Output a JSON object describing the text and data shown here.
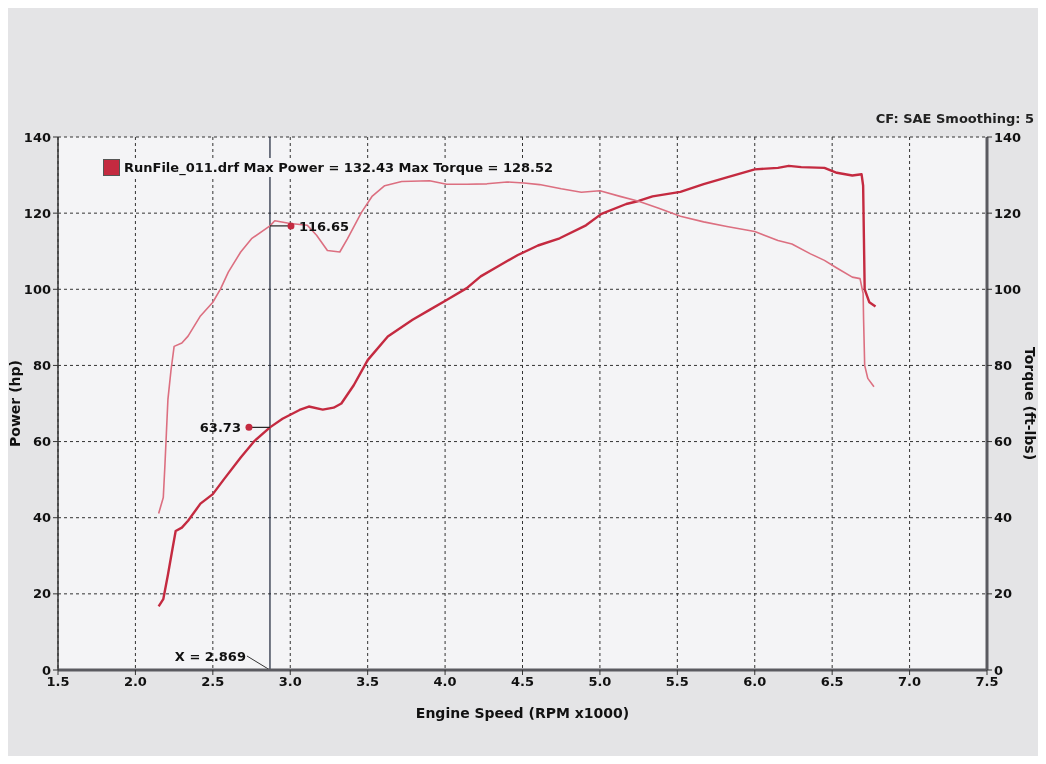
{
  "chart_data": {
    "type": "line",
    "xlabel": "Engine Speed (RPM x1000)",
    "ylabel": "Power (hp)",
    "y2label": "Torque (ft-lbs)",
    "xlim": [
      1.5,
      7.5
    ],
    "xticks": [
      1.5,
      {
        "value": 2,
        "label": "2.0"
      },
      2.5,
      {
        "value": 3,
        "label": "3.0"
      },
      3.5,
      {
        "value": 4,
        "label": "4.0"
      },
      4.5,
      {
        "value": 5,
        "label": "5.0"
      },
      5.5,
      {
        "value": 6,
        "label": "6.0"
      },
      6.5,
      {
        "value": 7,
        "label": "7.0"
      },
      7.5
    ],
    "ylim": [
      0,
      140
    ],
    "yticks": [
      0,
      20,
      40,
      60,
      80,
      100,
      120,
      140
    ],
    "y2lim": [
      0,
      140
    ],
    "y2ticks": [
      0,
      20,
      40,
      60,
      80,
      100,
      120,
      140
    ],
    "grid": true,
    "legend": "top left",
    "series": [
      {
        "name": "RunFile_011.drf Max Power = 132.43 Max Torque = 128.52",
        "color": "#c42a40",
        "x": [
          2.15,
          2.18,
          2.21,
          2.24,
          2.26,
          2.3,
          2.34,
          2.42,
          2.5,
          2.57,
          2.68,
          2.77,
          2.869,
          2.95,
          3.06,
          3.12,
          3.21,
          3.28,
          3.33,
          3.41,
          3.5,
          3.63,
          3.79,
          3.9,
          4.01,
          4.14,
          4.23,
          4.34,
          4.47,
          4.6,
          4.74,
          4.91,
          5.01,
          5.17,
          5.25,
          5.34,
          5.52,
          5.67,
          5.82,
          6.0,
          6.15,
          6.22,
          6.3,
          6.45,
          6.53,
          6.63,
          6.69,
          6.7,
          6.705,
          6.71,
          6.74,
          6.78
        ],
        "values": [
          16.7,
          18.6,
          25,
          32,
          36.5,
          37.4,
          39.2,
          43.7,
          46.2,
          50,
          55.8,
          60.2,
          63.73,
          66,
          68.3,
          69.2,
          68.4,
          68.9,
          70,
          74.8,
          81.4,
          87.6,
          92,
          94.6,
          97.2,
          100.3,
          103.4,
          106,
          109,
          111.5,
          113.4,
          116.8,
          119.8,
          122.4,
          123.2,
          124.4,
          125.6,
          127.6,
          129.4,
          131.5,
          131.9,
          132.43,
          132.1,
          131.9,
          130.6,
          129.9,
          130.2,
          127.2,
          113.6,
          100,
          96.6,
          95.5
        ]
      },
      {
        "color": "#dc6f80",
        "axis": "y2",
        "x": [
          2.15,
          2.18,
          2.19,
          2.2,
          2.21,
          2.23,
          2.25,
          2.3,
          2.34,
          2.42,
          2.5,
          2.55,
          2.6,
          2.68,
          2.75,
          2.869,
          2.9,
          3.0,
          3.11,
          3.17,
          3.24,
          3.32,
          3.37,
          3.46,
          3.53,
          3.61,
          3.72,
          3.9,
          4.01,
          4.14,
          4.27,
          4.4,
          4.51,
          4.61,
          4.75,
          4.88,
          5.0,
          5.13,
          5.25,
          5.38,
          5.52,
          5.67,
          5.82,
          6.0,
          6.15,
          6.24,
          6.36,
          6.45,
          6.53,
          6.63,
          6.68,
          6.7,
          6.703,
          6.71,
          6.73,
          6.77
        ],
        "values": [
          41.1,
          45.3,
          53.3,
          62.2,
          71.1,
          78.8,
          85,
          85.9,
          87.7,
          93,
          96.6,
          100.1,
          104.5,
          109.8,
          113.3,
          116.65,
          118,
          117.3,
          116.8,
          114.2,
          110.2,
          109.8,
          113.3,
          120.2,
          124.5,
          127.2,
          128.3,
          128.52,
          127.6,
          127.6,
          127.7,
          128.2,
          127.9,
          127.5,
          126.4,
          125.5,
          125.9,
          124.4,
          123.1,
          121.3,
          119.2,
          117.7,
          116.5,
          115.2,
          112.8,
          111.9,
          109.3,
          107.6,
          105.6,
          103.2,
          102.8,
          98.9,
          92,
          80,
          76.6,
          74.4
        ]
      }
    ],
    "ref_lines": [
      {
        "axis": "x",
        "value": 2.869,
        "label": "X = 2.869",
        "color": "#1c2438"
      }
    ],
    "annotations": [
      "CF: SAE Smoothing: 5",
      {
        "text": "116.65",
        "x": 2.869,
        "y": 116.65
      },
      {
        "text": "63.73",
        "x": 2.869,
        "y": 63.73
      }
    ]
  }
}
